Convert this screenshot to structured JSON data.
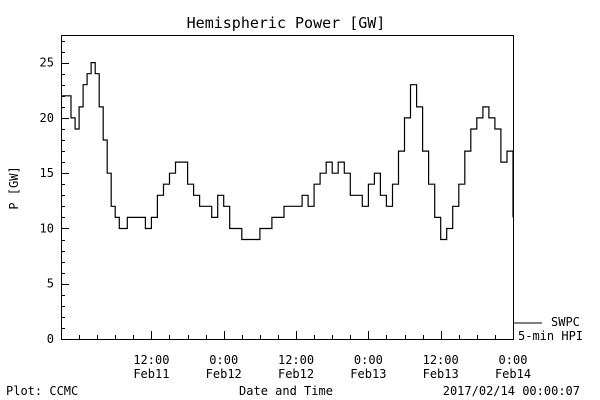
{
  "chart_data": {
    "type": "line",
    "title": "Hemispheric Power [GW]",
    "xlabel": "Date and Time",
    "ylabel": "P [GW]",
    "ylim": [
      0,
      27.5
    ],
    "yticks": [
      0,
      5,
      10,
      15,
      20,
      25
    ],
    "xlim": [
      "2017-02-10T21:00",
      "2017-02-14T00:00"
    ],
    "xticks": [
      {
        "t": "2017-02-11T12:00",
        "time": "12:00",
        "date": "Feb11"
      },
      {
        "t": "2017-02-12T00:00",
        "time": "0:00",
        "date": "Feb12"
      },
      {
        "t": "2017-02-12T12:00",
        "time": "12:00",
        "date": "Feb12"
      },
      {
        "t": "2017-02-13T00:00",
        "time": "0:00",
        "date": "Feb13"
      },
      {
        "t": "2017-02-13T12:00",
        "time": "12:00",
        "date": "Feb13"
      },
      {
        "t": "2017-02-14T00:00",
        "time": "0:00",
        "date": "Feb14"
      }
    ],
    "grid": false,
    "legend": {
      "placement": "right",
      "lines": [
        "SWPC",
        "5-min HPI"
      ]
    },
    "series": [
      {
        "x": [
          "2017-02-10T21:00",
          "2017-02-10T22:00",
          "2017-02-10T22:40",
          "2017-02-10T23:20",
          "2017-02-11T00:00",
          "2017-02-11T00:40",
          "2017-02-11T01:20",
          "2017-02-11T02:00",
          "2017-02-11T02:40",
          "2017-02-11T03:20",
          "2017-02-11T04:00",
          "2017-02-11T04:40",
          "2017-02-11T05:20",
          "2017-02-11T06:00",
          "2017-02-11T06:40",
          "2017-02-11T07:20",
          "2017-02-11T08:00",
          "2017-02-11T08:40",
          "2017-02-11T09:20",
          "2017-02-11T10:00",
          "2017-02-11T11:00",
          "2017-02-11T12:00",
          "2017-02-11T13:00",
          "2017-02-11T14:00",
          "2017-02-11T15:00",
          "2017-02-11T16:00",
          "2017-02-11T17:00",
          "2017-02-11T18:00",
          "2017-02-11T19:00",
          "2017-02-11T20:00",
          "2017-02-11T21:00",
          "2017-02-11T22:00",
          "2017-02-11T23:00",
          "2017-02-12T00:00",
          "2017-02-12T01:00",
          "2017-02-12T02:00",
          "2017-02-12T03:00",
          "2017-02-12T04:00",
          "2017-02-12T05:00",
          "2017-02-12T06:00",
          "2017-02-12T07:00",
          "2017-02-12T08:00",
          "2017-02-12T09:00",
          "2017-02-12T10:00",
          "2017-02-12T11:00",
          "2017-02-12T12:00",
          "2017-02-12T13:00",
          "2017-02-12T14:00",
          "2017-02-12T15:00",
          "2017-02-12T16:00",
          "2017-02-12T17:00",
          "2017-02-12T18:00",
          "2017-02-12T19:00",
          "2017-02-12T20:00",
          "2017-02-12T21:00",
          "2017-02-12T22:00",
          "2017-02-12T23:00",
          "2017-02-13T00:00",
          "2017-02-13T01:00",
          "2017-02-13T02:00",
          "2017-02-13T03:00",
          "2017-02-13T04:00",
          "2017-02-13T05:00",
          "2017-02-13T06:00",
          "2017-02-13T07:00",
          "2017-02-13T08:00",
          "2017-02-13T09:00",
          "2017-02-13T10:00",
          "2017-02-13T11:00",
          "2017-02-13T12:00",
          "2017-02-13T13:00",
          "2017-02-13T14:00",
          "2017-02-13T15:00",
          "2017-02-13T16:00",
          "2017-02-13T17:00",
          "2017-02-13T18:00",
          "2017-02-13T19:00",
          "2017-02-13T20:00",
          "2017-02-13T21:00",
          "2017-02-13T22:00",
          "2017-02-13T23:00",
          "2017-02-14T00:00"
        ],
        "y": [
          22,
          22,
          20,
          19,
          21,
          23,
          24,
          25,
          24,
          21,
          18,
          15,
          12,
          11,
          10,
          10,
          11,
          11,
          11,
          11,
          10,
          11,
          13,
          14,
          15,
          16,
          16,
          14,
          13,
          12,
          12,
          11,
          13,
          12,
          10,
          10,
          9,
          9,
          9,
          10,
          10,
          11,
          11,
          12,
          12,
          12,
          13,
          12,
          14,
          15,
          16,
          15,
          16,
          15,
          13,
          13,
          12,
          14,
          15,
          13,
          12,
          14,
          17,
          20,
          23,
          21,
          17,
          14,
          11,
          9,
          8,
          10,
          11,
          13,
          14,
          13,
          13,
          12,
          10,
          9,
          10,
          11
        ],
        "y_end": [
          22,
          22,
          20,
          19,
          21,
          23,
          24,
          25,
          24,
          21,
          18,
          15,
          12,
          11,
          10,
          10,
          11,
          11,
          11,
          11,
          10,
          11,
          13,
          14,
          15,
          16,
          16,
          14,
          13,
          12,
          12,
          11,
          13,
          12,
          10,
          10,
          9,
          9,
          9,
          10,
          10,
          11,
          11,
          12,
          12,
          12,
          13,
          12,
          14,
          15,
          16,
          15,
          16,
          15,
          13,
          13,
          12,
          14,
          15,
          13,
          12,
          14,
          17,
          20,
          23,
          21,
          17,
          14,
          11,
          9,
          8,
          10,
          11,
          13,
          14,
          13,
          13,
          12,
          10,
          9,
          10,
          11
        ],
        "tail_x": [
          "2017-02-13T12:00",
          "2017-02-13T13:00",
          "2017-02-13T14:00",
          "2017-02-13T15:00",
          "2017-02-13T16:00",
          "2017-02-13T17:00",
          "2017-02-13T18:00",
          "2017-02-13T19:00",
          "2017-02-13T20:00",
          "2017-02-13T21:00",
          "2017-02-13T22:00",
          "2017-02-13T23:00",
          "2017-02-14T00:00"
        ],
        "tail_y": [
          9,
          10,
          12,
          14,
          17,
          19,
          20,
          21,
          20,
          19,
          16,
          17,
          11
        ]
      }
    ]
  },
  "footer": {
    "left": "Plot: CCMC",
    "right": "2017/02/14 00:00:07"
  }
}
